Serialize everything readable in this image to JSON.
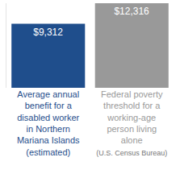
{
  "chart_data": {
    "type": "bar",
    "categories": [
      "Average annual benefit for a disabled worker in Northern Mariana Islands (estimated)",
      "Federal poverty threshold for a working-age person living alone"
    ],
    "values": [
      9312,
      12316
    ],
    "value_labels": [
      "$9,312",
      "$12,316"
    ],
    "colors": [
      "#1f4e8c",
      "#999999"
    ],
    "note": "(U.S. Census Bureau)",
    "ylim": [
      0,
      12316
    ],
    "data_labels": true,
    "tick_labels": "x",
    "grid": false
  }
}
